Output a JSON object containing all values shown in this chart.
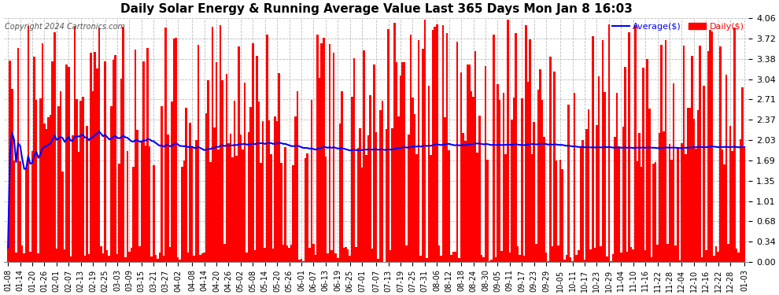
{
  "title": "Daily Solar Energy & Running Average Value Last 365 Days Mon Jan 8 16:03",
  "copyright": "Copyright 2024 Cartronics.com",
  "legend_avg": "Average($)",
  "legend_daily": "Daily($)",
  "bar_color": "#FF0000",
  "avg_line_color": "#0000FF",
  "background_color": "#FFFFFF",
  "grid_color": "#BBBBBB",
  "ylim": [
    0.0,
    4.06
  ],
  "yticks": [
    0.0,
    0.34,
    0.68,
    1.01,
    1.35,
    1.69,
    2.03,
    2.37,
    2.71,
    3.04,
    3.38,
    3.72,
    4.06
  ],
  "x_dates": [
    "01-08",
    "01-14",
    "01-20",
    "01-26",
    "02-01",
    "02-07",
    "02-13",
    "02-19",
    "02-25",
    "03-03",
    "03-09",
    "03-15",
    "03-21",
    "03-27",
    "04-02",
    "04-08",
    "04-14",
    "04-20",
    "04-26",
    "05-02",
    "05-08",
    "05-14",
    "05-20",
    "05-26",
    "06-01",
    "06-07",
    "06-13",
    "06-19",
    "06-25",
    "07-01",
    "07-07",
    "07-13",
    "07-19",
    "07-25",
    "07-31",
    "08-06",
    "08-12",
    "08-18",
    "08-24",
    "08-30",
    "09-05",
    "09-11",
    "09-17",
    "09-23",
    "09-29",
    "10-05",
    "10-11",
    "10-17",
    "10-23",
    "10-29",
    "11-04",
    "11-10",
    "11-16",
    "11-22",
    "11-28",
    "12-04",
    "12-10",
    "12-16",
    "12-22",
    "12-28",
    "01-03"
  ]
}
